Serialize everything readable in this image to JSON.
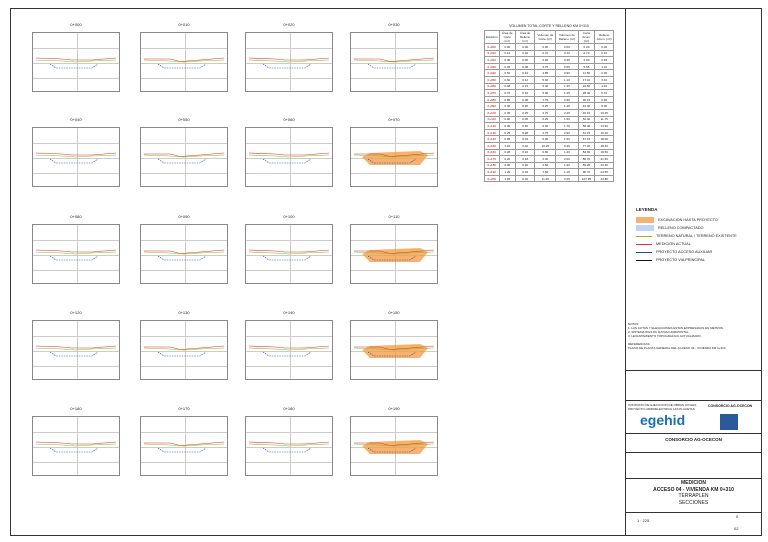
{
  "sections": [
    {
      "name": "0+000",
      "col": 0,
      "row": 0
    },
    {
      "name": "0+010",
      "col": 1,
      "row": 0
    },
    {
      "name": "0+020",
      "col": 2,
      "row": 0
    },
    {
      "name": "0+030",
      "col": 3,
      "row": 0
    },
    {
      "name": "0+040",
      "col": 0,
      "row": 1
    },
    {
      "name": "0+050",
      "col": 1,
      "row": 1
    },
    {
      "name": "0+060",
      "col": 2,
      "row": 1
    },
    {
      "name": "0+070",
      "col": 3,
      "row": 1
    },
    {
      "name": "0+080",
      "col": 0,
      "row": 2
    },
    {
      "name": "0+090",
      "col": 1,
      "row": 2
    },
    {
      "name": "0+100",
      "col": 2,
      "row": 2
    },
    {
      "name": "0+110",
      "col": 3,
      "row": 2
    },
    {
      "name": "0+120",
      "col": 0,
      "row": 3
    },
    {
      "name": "0+130",
      "col": 1,
      "row": 3
    },
    {
      "name": "0+140",
      "col": 2,
      "row": 3
    },
    {
      "name": "0+150",
      "col": 3,
      "row": 3
    },
    {
      "name": "0+160",
      "col": 0,
      "row": 4
    },
    {
      "name": "0+170",
      "col": 1,
      "row": 4
    },
    {
      "name": "0+180",
      "col": 2,
      "row": 4
    },
    {
      "name": "0+190",
      "col": 3,
      "row": 4
    }
  ],
  "volume_table": {
    "title": "VOLUMEN TOTAL CORTE Y RELLENO KM 0+310",
    "headers": [
      "Estación",
      "Área de Corte (m²)",
      "Área de Relleno (m²)",
      "Volumen de Corte (m³)",
      "Volumen de Relleno (m³)",
      "Corte Acum. (m³)",
      "Relleno Acum. (m³)"
    ],
    "rows": [
      [
        "0+000",
        "0.00",
        "0.00",
        "0.00",
        "0.00",
        "0.00",
        "0.00"
      ],
      [
        "0+010",
        "0.14",
        "0.02",
        "0.70",
        "0.10",
        "0.70",
        "0.10"
      ],
      [
        "0+020",
        "0.30",
        "0.05",
        "2.20",
        "0.35",
        "2.90",
        "0.45"
      ],
      [
        "0+030",
        "0.45",
        "0.08",
        "3.75",
        "0.65",
        "6.65",
        "1.10"
      ],
      [
        "0+040",
        "0.52",
        "0.10",
        "4.85",
        "0.90",
        "11.50",
        "2.00"
      ],
      [
        "0+050",
        "0.60",
        "0.12",
        "5.60",
        "1.10",
        "17.10",
        "3.10"
      ],
      [
        "0+060",
        "0.48",
        "0.15",
        "5.40",
        "1.35",
        "22.50",
        "4.45"
      ],
      [
        "0+070",
        "0.70",
        "0.10",
        "5.90",
        "1.25",
        "28.40",
        "5.70"
      ],
      [
        "0+080",
        "0.85",
        "0.08",
        "7.75",
        "0.90",
        "36.15",
        "6.60"
      ],
      [
        "0+090",
        "0.40",
        "0.20",
        "6.25",
        "1.40",
        "42.40",
        "8.00"
      ],
      [
        "0+100",
        "0.35",
        "0.25",
        "3.75",
        "2.25",
        "46.15",
        "10.25"
      ],
      [
        "0+110",
        "0.90",
        "0.05",
        "6.25",
        "1.50",
        "52.40",
        "11.75"
      ],
      [
        "0+120",
        "0.30",
        "0.30",
        "6.00",
        "1.75",
        "58.40",
        "13.50"
      ],
      [
        "0+130",
        "0.25",
        "0.28",
        "2.75",
        "2.90",
        "61.15",
        "16.40"
      ],
      [
        "0+140",
        "0.95",
        "0.04",
        "6.00",
        "1.60",
        "67.15",
        "18.00"
      ],
      [
        "0+150",
        "1.10",
        "0.02",
        "10.25",
        "0.30",
        "77.40",
        "18.30"
      ],
      [
        "0+160",
        "0.28",
        "0.22",
        "6.90",
        "1.20",
        "84.30",
        "19.50"
      ],
      [
        "0+170",
        "0.20",
        "0.18",
        "2.40",
        "2.00",
        "86.70",
        "21.50"
      ],
      [
        "0+180",
        "0.30",
        "0.20",
        "2.50",
        "1.90",
        "89.20",
        "23.40"
      ],
      [
        "0+190",
        "1.20",
        "0.03",
        "7.50",
        "1.15",
        "96.70",
        "24.55"
      ],
      [
        "0+200",
        "1.05",
        "0.02",
        "11.25",
        "0.25",
        "107.95",
        "24.80"
      ]
    ]
  },
  "legend": {
    "title": "LEYENDA",
    "items": [
      {
        "label": "EXCAVACION HASTA PROYECTO",
        "color": "#f5a04a"
      },
      {
        "label": "RELLENO COMPACTADO",
        "color": "#3a6fd8"
      },
      {
        "label": "TERRENO NATURAL / TERRENO EXISTENTE",
        "color": "#88bb22"
      },
      {
        "label": "MEDICION ACTUAL",
        "color": "#e03030"
      },
      {
        "label": "PROYECTO ACCESO AUXILIAR",
        "color": "#2040d0"
      },
      {
        "label": "PROYECTO VIA PRINCIPAL",
        "color": "#111111"
      }
    ]
  },
  "notes": {
    "title": "NOTAS:",
    "lines": [
      "1. LAS COTAS Y ELEVACIONES ESTAN EXPRESADAS EN METROS.",
      "2. SISTEMA WGS 84, DATUM HORIZONTAL.",
      "3. LEVANTAMIENTO TOPOGRAFICO ACTUALIZADO."
    ],
    "ref_title": "REFERENCIAS:",
    "ref_lines": [
      "PLANO DE PLANTA GENERAL DEL ACCESO 04 - VIVIENDA KM 0+310"
    ]
  },
  "title_block": {
    "client_label": "CONTRATO DE EJECUCION DE OBRAS CIVILES PROYECTO HIDROELECTRICA LAS PLACETAS",
    "consortium": "CONSORCIO AG-OCECON",
    "logo": "egehid",
    "drawing_type": "MEDICION",
    "drawing_title": "ACCESO 04 - VIVIENDA KM 0+310",
    "drawing_sub1": "TERRAPLEN",
    "drawing_sub2": "SECCIONES",
    "scale": "1 : 225",
    "sheet": "02",
    "rev": "0"
  }
}
